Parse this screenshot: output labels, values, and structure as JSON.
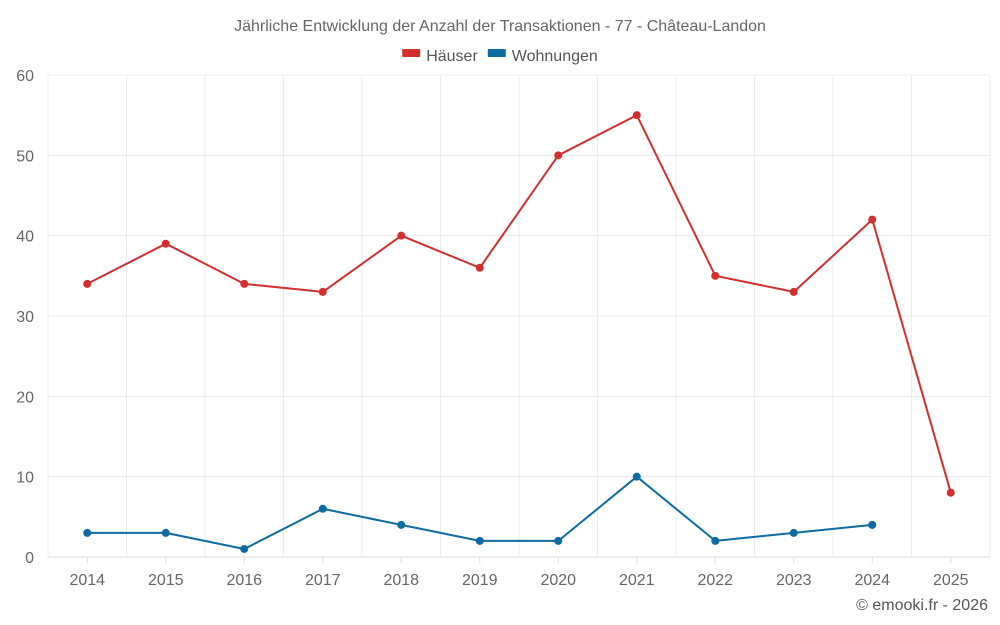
{
  "chart_data": {
    "type": "line",
    "title": "Jährliche Entwicklung der Anzahl der Transaktionen - 77 - Château-Landon",
    "categories": [
      "2014",
      "2015",
      "2016",
      "2017",
      "2018",
      "2019",
      "2020",
      "2021",
      "2022",
      "2023",
      "2024",
      "2025"
    ],
    "series": [
      {
        "name": "Häuser",
        "color": "#d32f2f",
        "values": [
          34,
          39,
          34,
          33,
          40,
          36,
          50,
          55,
          35,
          33,
          42,
          8
        ]
      },
      {
        "name": "Wohnungen",
        "color": "#0d6ba3",
        "values": [
          3,
          3,
          1,
          6,
          4,
          2,
          2,
          10,
          2,
          3,
          4,
          null
        ]
      }
    ],
    "ylim": [
      0,
      60
    ],
    "yticks": [
      0,
      10,
      20,
      30,
      40,
      50,
      60
    ],
    "xlabel": "",
    "ylabel": "",
    "grid": true,
    "legend": "top-center"
  },
  "credit": "© emooki.fr - 2026"
}
